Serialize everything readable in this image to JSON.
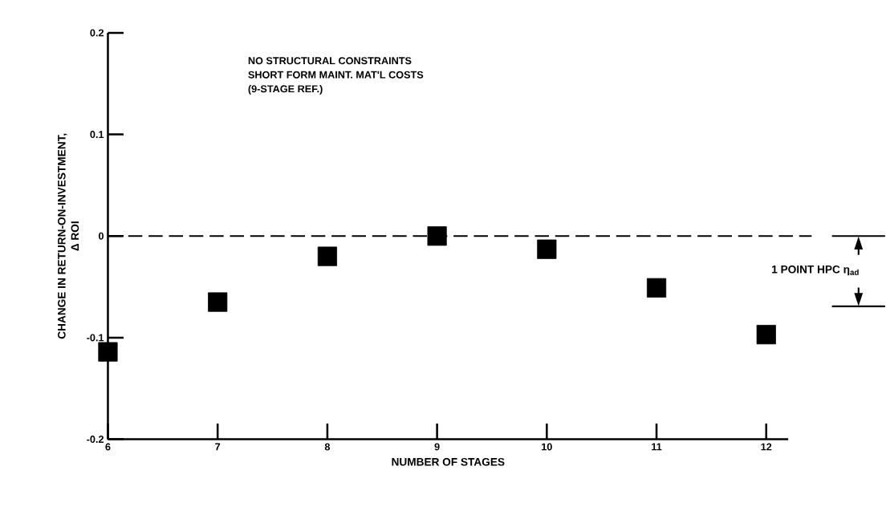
{
  "chart_data": {
    "type": "scatter",
    "xlabel": "NUMBER OF STAGES",
    "ylabel": "CHANGE IN RETURN-ON-INVESTMENT,\nΔ ROI",
    "x": [
      6,
      7,
      8,
      9,
      10,
      11,
      12
    ],
    "series": [
      {
        "color": "#000000",
        "values": [
          -0.114,
          -0.065,
          -0.02,
          0,
          -0.013,
          -0.051,
          -0.097
        ]
      }
    ],
    "marker": "square",
    "xlim": [
      6,
      12.2
    ],
    "xticks": [
      6,
      7,
      8,
      9,
      10,
      11,
      12
    ],
    "ylim": [
      -0.2,
      0.2
    ],
    "yticks": [
      -0.2,
      -0.1,
      0,
      0.1,
      0.2
    ],
    "ref_lines": [
      {
        "axis": "y",
        "value": 0,
        "label": null,
        "line_style": "dashed"
      }
    ],
    "annotations": [
      "NO STRUCTURAL CONSTRAINTS",
      "SHORT FORM MAINT. MAT'L COSTS",
      "(9-STAGE REF.)",
      "1 POINT HPC η$_{ad}$"
    ],
    "grid": false
  }
}
